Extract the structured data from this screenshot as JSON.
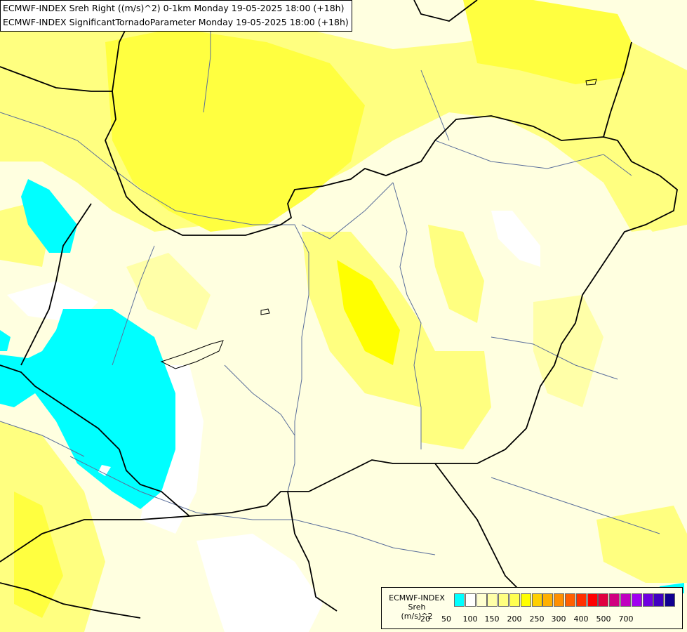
{
  "title": {
    "line1": "ECMWF-INDEX Sreh Right ((m/s)^2) 0-1km Monday 19-05-2025 18:00 (+18h)",
    "line2": "ECMWF-INDEX SignificantTornadoParameter Monday 19-05-2025 18:00 (+18h)"
  },
  "legend": {
    "source": "ECMWF-INDEX",
    "variable": "Sreh",
    "unit": "(m/s)^2",
    "swatch_colors": [
      "#00ffff",
      "#ffffff",
      "#ffffd0",
      "#ffffa8",
      "#ffff80",
      "#ffff50",
      "#ffff00",
      "#ffd000",
      "#ffb000",
      "#ff9000",
      "#ff6000",
      "#ff3000",
      "#ff0000",
      "#e00040",
      "#d00080",
      "#c000c0",
      "#a000f0",
      "#7000e0",
      "#4000c0",
      "#100090"
    ],
    "tick_labels": [
      "-20",
      "50",
      "100",
      "150",
      "200",
      "250",
      "300",
      "400",
      "500",
      "700"
    ]
  },
  "map_colors": {
    "base": "#ffffe0",
    "light_yellow": "#ffffa8",
    "yellow": "#ffff80",
    "bright_yellow": "#ffff40",
    "strong_yellow": "#ffff00",
    "cyan": "#00ffff",
    "white": "#ffffff",
    "border": "#000000",
    "river": "#5a6e9a"
  }
}
